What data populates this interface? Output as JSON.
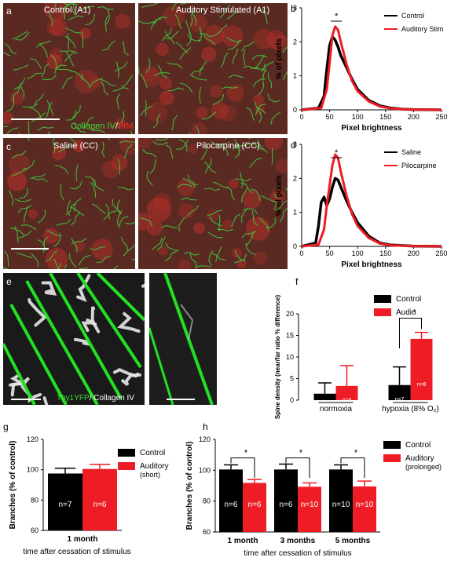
{
  "panels": {
    "a": {
      "letter": "a",
      "left_label": "Control (A1)",
      "right_label": "Auditory Stimulated (A1)",
      "stain_green": "Collagen IV",
      "stain_sep": "/",
      "stain_red": "PIM"
    },
    "c": {
      "letter": "c",
      "left_label": "Saline (CC)",
      "right_label": "Pilocarpine (CC)"
    },
    "e": {
      "letter": "e",
      "stain_green": "Thy1YFP",
      "stain_rest": "/ Collagen IV"
    },
    "b": {
      "letter": "b"
    },
    "d": {
      "letter": "d"
    },
    "f": {
      "letter": "f"
    },
    "g": {
      "letter": "g"
    },
    "h": {
      "letter": "h"
    }
  },
  "colors": {
    "red": "#ee1c24",
    "black": "#000000",
    "green": "#2db82d",
    "micro_bg": "#5a2a22"
  },
  "chart_data": [
    {
      "id": "b",
      "type": "line",
      "xlabel": "Pixel brightness",
      "ylabel": "% of pixels",
      "xlim": [
        0,
        250
      ],
      "ylim": [
        0,
        3
      ],
      "xticks": [
        0,
        50,
        100,
        150,
        200,
        250
      ],
      "yticks": [
        0,
        1,
        2,
        3
      ],
      "legend": "top-right",
      "significance": "*",
      "series": [
        {
          "name": "Control",
          "color": "#000000",
          "x": [
            0,
            30,
            40,
            45,
            50,
            55,
            60,
            65,
            70,
            80,
            90,
            100,
            120,
            140,
            160,
            180,
            200,
            250
          ],
          "y": [
            0,
            0.05,
            0.4,
            1.2,
            1.9,
            2.15,
            2.05,
            1.85,
            1.6,
            1.25,
            0.9,
            0.6,
            0.28,
            0.12,
            0.05,
            0.02,
            0.01,
            0
          ]
        },
        {
          "name": "Auditory Stim",
          "color": "#ee1c24",
          "x": [
            0,
            35,
            45,
            50,
            55,
            60,
            65,
            70,
            80,
            90,
            100,
            120,
            140,
            160,
            180,
            200,
            250
          ],
          "y": [
            0,
            0.05,
            0.6,
            1.4,
            2.2,
            2.45,
            2.35,
            2.0,
            1.35,
            0.85,
            0.55,
            0.25,
            0.1,
            0.04,
            0.02,
            0.01,
            0
          ]
        }
      ]
    },
    {
      "id": "d",
      "type": "line",
      "xlabel": "Pixel brightness",
      "ylabel": "% of pixels",
      "xlim": [
        0,
        250
      ],
      "ylim": [
        0,
        3
      ],
      "xticks": [
        0,
        50,
        100,
        150,
        200,
        250
      ],
      "yticks": [
        0,
        1,
        2,
        3
      ],
      "legend": "top-right",
      "significance": "*",
      "series": [
        {
          "name": "Saline",
          "color": "#000000",
          "x": [
            0,
            25,
            30,
            35,
            40,
            45,
            50,
            55,
            60,
            65,
            70,
            80,
            90,
            100,
            120,
            140,
            160,
            200,
            250
          ],
          "y": [
            0,
            0.1,
            0.6,
            1.3,
            1.45,
            1.2,
            1.4,
            1.75,
            2.0,
            1.95,
            1.75,
            1.35,
            1.0,
            0.7,
            0.3,
            0.1,
            0.04,
            0.01,
            0
          ]
        },
        {
          "name": "Pilocarpine",
          "color": "#ee1c24",
          "x": [
            0,
            30,
            40,
            45,
            50,
            55,
            60,
            65,
            70,
            80,
            90,
            100,
            120,
            140,
            160,
            200,
            250
          ],
          "y": [
            0,
            0.05,
            0.5,
            1.2,
            1.8,
            2.4,
            2.7,
            2.6,
            2.2,
            1.5,
            0.95,
            0.6,
            0.25,
            0.08,
            0.03,
            0.01,
            0
          ]
        }
      ]
    },
    {
      "id": "f",
      "type": "bar",
      "ylabel": "Spine density (near/far ratio % difference)",
      "ylim": [
        0,
        20
      ],
      "yticks": [
        0,
        5,
        10,
        15,
        20
      ],
      "categories": [
        "normoxia",
        "hypoxia (8% O₂)"
      ],
      "legend": "top-right",
      "significance": "*",
      "series": [
        {
          "name": "Control",
          "color": "#000000",
          "values": [
            1.5,
            3.5
          ],
          "errors": [
            2.5,
            4.2
          ],
          "n": [
            "n=6",
            "n=7"
          ]
        },
        {
          "name": "Audio",
          "color": "#ee1c24",
          "values": [
            3.3,
            14.2
          ],
          "errors": [
            4.7,
            1.5
          ],
          "n": [
            "n=6",
            "n=8"
          ]
        }
      ]
    },
    {
      "id": "g",
      "type": "bar",
      "ylabel": "Branches (% of control)",
      "xlabel": "time after cessation of stimulus",
      "ylim": [
        60,
        120
      ],
      "yticks": [
        60,
        80,
        100,
        120
      ],
      "categories": [
        "1 month"
      ],
      "legend": "top-right",
      "series": [
        {
          "name": "Control",
          "color": "#000000",
          "values": [
            97.5
          ],
          "errors": [
            3.5
          ],
          "n": [
            "n=7"
          ]
        },
        {
          "name": "Auditory (short)",
          "color": "#ee1c24",
          "values": [
            100.5
          ],
          "errors": [
            3.0
          ],
          "n": [
            "n=6"
          ]
        }
      ]
    },
    {
      "id": "h",
      "type": "bar",
      "ylabel": "Branches (% of control)",
      "xlabel": "time after cessation of stimulus",
      "ylim": [
        60,
        120
      ],
      "yticks": [
        60,
        80,
        100,
        120
      ],
      "categories": [
        "1 month",
        "3 months",
        "5 months"
      ],
      "legend": "top-right",
      "significance": "*",
      "series": [
        {
          "name": "Control",
          "color": "#000000",
          "values": [
            100.5,
            100.5,
            100.5
          ],
          "errors": [
            3.0,
            3.5,
            3.0
          ],
          "n": [
            "n=6",
            "n=6",
            "n=10"
          ]
        },
        {
          "name": "Auditory (prolonged)",
          "color": "#ee1c24",
          "values": [
            91.8,
            89.3,
            89.5
          ],
          "errors": [
            2.2,
            2.5,
            3.5
          ],
          "n": [
            "n=6",
            "n=10",
            "n=10"
          ]
        }
      ]
    }
  ]
}
